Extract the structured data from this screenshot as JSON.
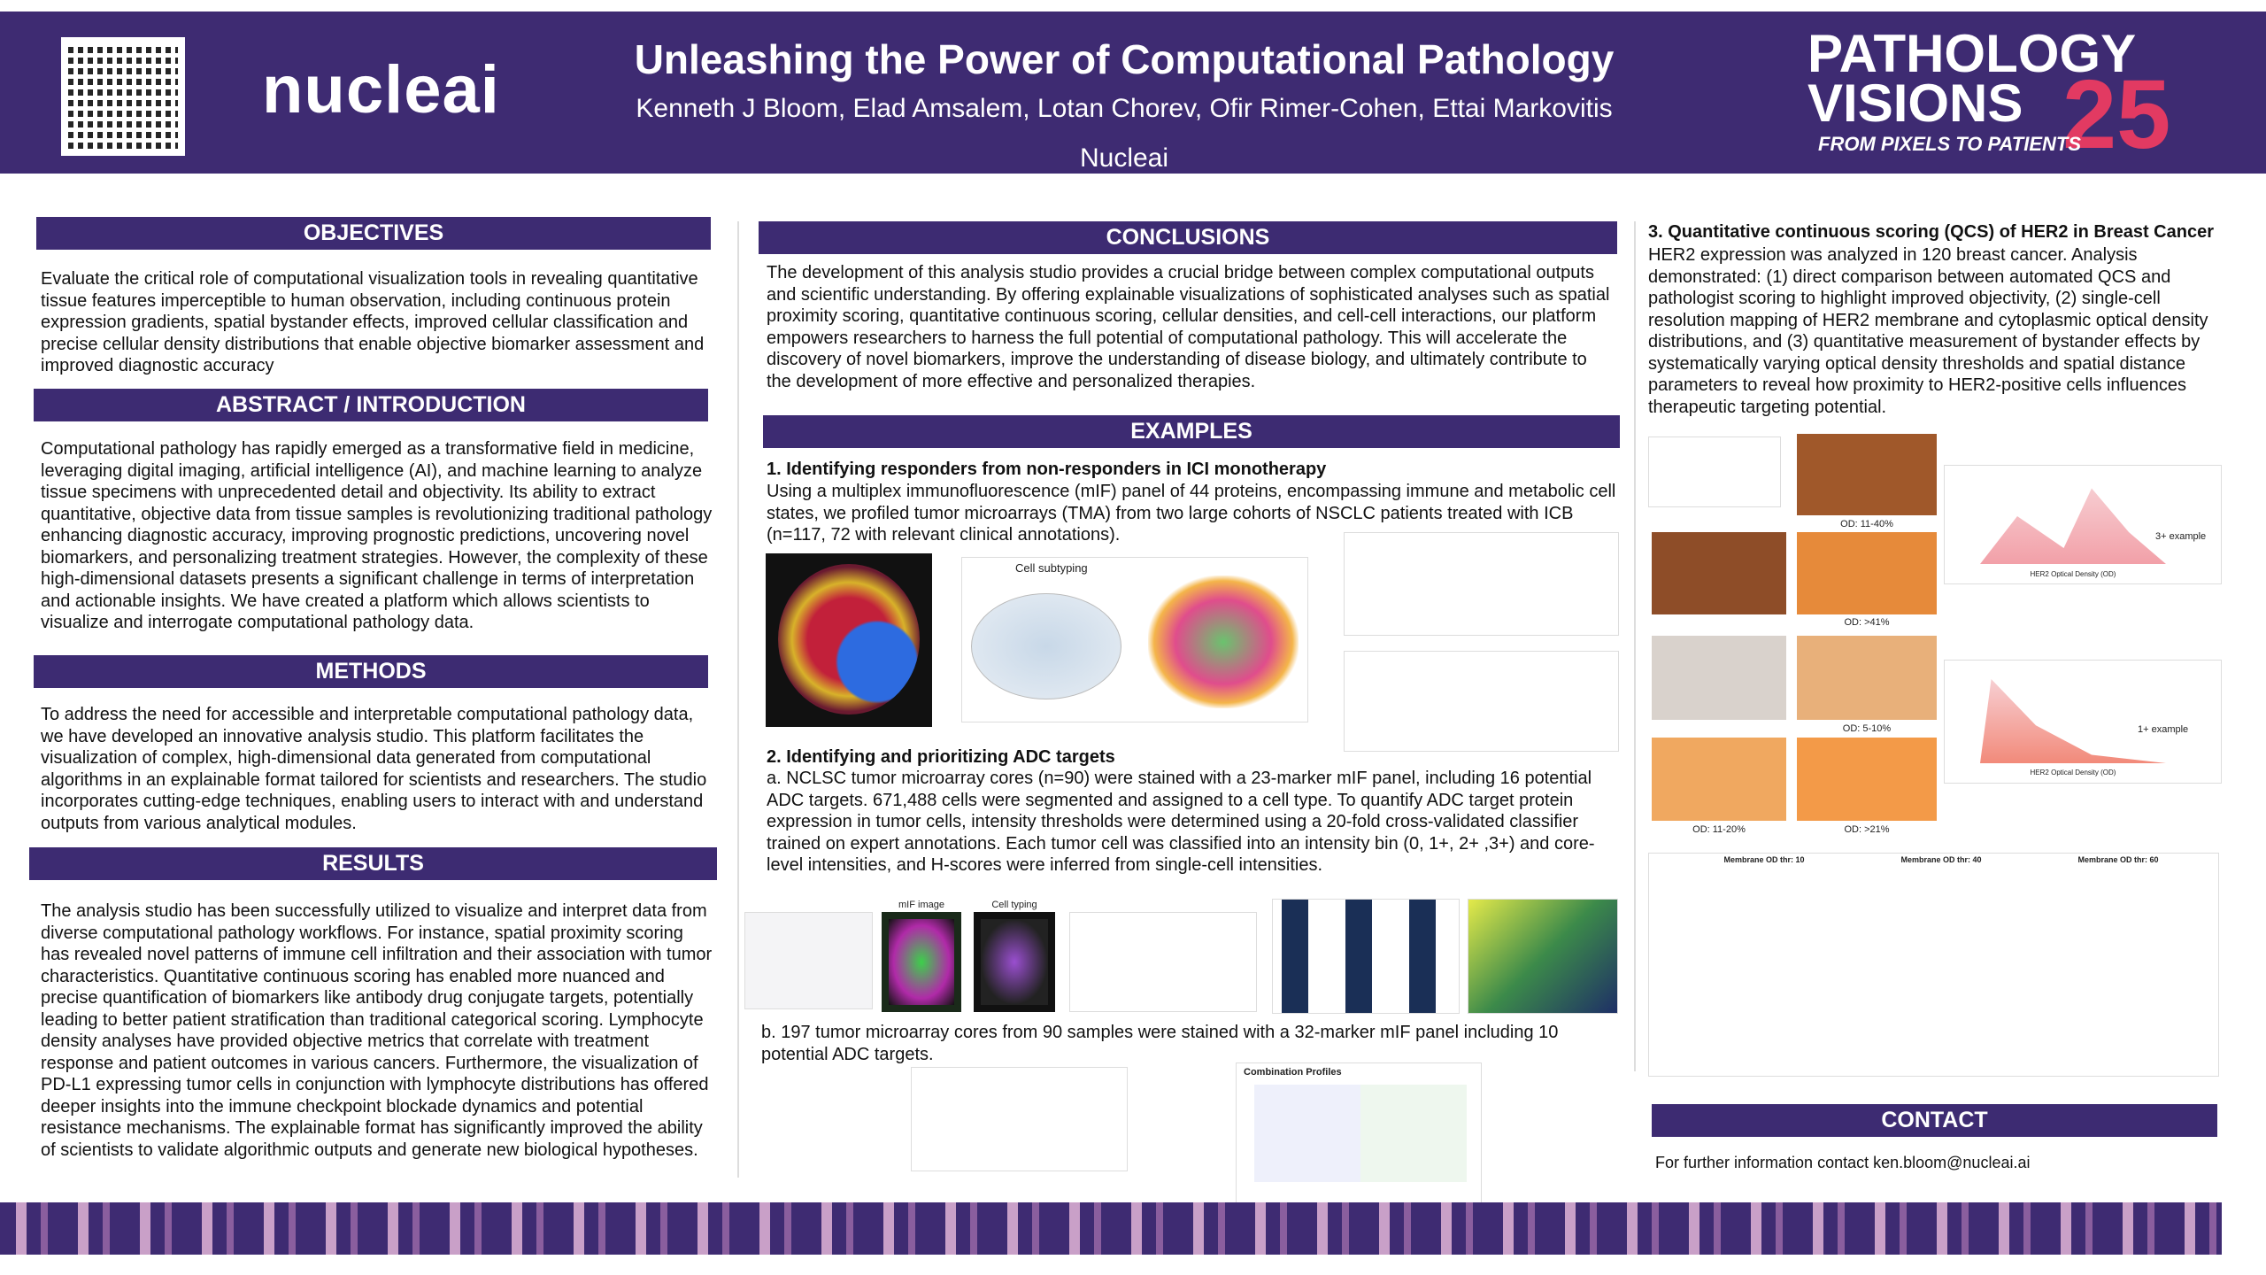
{
  "header": {
    "title": "Unleashing the Power of Computational Pathology",
    "authors": "Kenneth J Bloom, Elad Amsalem, Lotan Chorev, Ofir Rimer-Cohen, Ettai Markovitis",
    "affiliation": "Nucleai",
    "logo": "nucleai",
    "event": {
      "line1": "PATHOLOGY",
      "line2": "VISIONS",
      "year": "25",
      "tagline": "FROM PIXELS TO PATIENTS"
    }
  },
  "sections": {
    "objectives": {
      "heading": "OBJECTIVES",
      "text": "Evaluate the critical role of computational visualization tools in revealing quantitative tissue features imperceptible to human observation, including continuous protein expression gradients, spatial bystander effects, improved cellular classification and precise cellular density distributions that enable objective biomarker assessment and improved diagnostic accuracy"
    },
    "abstract": {
      "heading": "ABSTRACT / INTRODUCTION",
      "text": "Computational pathology has rapidly emerged as a transformative field in medicine, leveraging digital imaging, artificial intelligence (AI), and machine learning to analyze tissue specimens with unprecedented detail and objectivity. Its ability to extract quantitative, objective data from tissue samples is revolutionizing traditional pathology enhancing diagnostic accuracy, improving prognostic predictions, uncovering novel biomarkers, and personalizing treatment strategies. However, the complexity of these high-dimensional datasets presents a significant challenge in terms of interpretation and actionable insights.  We have created a platform which allows scientists to visualize and interrogate computational pathology data."
    },
    "methods": {
      "heading": "METHODS",
      "text": "To address the need for accessible and interpretable computational pathology data, we have developed an innovative analysis studio. This platform facilitates the visualization of complex, high-dimensional data generated from computational algorithms in an explainable format tailored for scientists and researchers. The studio incorporates cutting-edge techniques, enabling users to interact with and understand outputs from various analytical modules."
    },
    "results": {
      "heading": "RESULTS",
      "text": "The analysis studio has been successfully utilized to visualize and interpret data from diverse computational pathology workflows. For instance, spatial proximity scoring has revealed novel patterns of immune cell infiltration and their association with tumor characteristics. Quantitative continuous scoring has enabled more nuanced and precise quantification of biomarkers like antibody drug conjugate targets, potentially leading to better patient stratification than traditional categorical scoring. Lymphocyte density analyses have provided objective metrics that correlate with treatment response and patient outcomes in various cancers. Furthermore, the visualization of PD-L1 expressing tumor cells in conjunction with lymphocyte distributions has offered deeper insights into the immune checkpoint blockade dynamics and potential resistance mechanisms. The explainable format has significantly improved the ability of scientists to validate algorithmic outputs and generate new biological hypotheses."
    },
    "conclusions": {
      "heading": "CONCLUSIONS",
      "text": "The development of this analysis studio provides a crucial bridge between complex computational outputs and scientific understanding. By offering explainable visualizations of sophisticated analyses such as spatial proximity scoring, quantitative continuous scoring, cellular densities, and cell-cell interactions, our platform empowers researchers to harness the full potential of computational pathology. This will accelerate the discovery of novel biomarkers, improve the understanding of disease biology, and ultimately contribute to the development of more effective and personalized therapies."
    },
    "examples": {
      "heading": "EXAMPLES",
      "items": [
        {
          "title": "1.  Identifying responders from non-responders in ICI monotherapy",
          "text": "Using a multiplex immunofluorescence (mIF) panel of 44 proteins, encompassing immune and metabolic cell states, we profiled tumor microarrays (TMA) from two large cohorts of NSCLC patients treated with ICB (n=117, 72 with relevant clinical annotations)."
        },
        {
          "title": "2.  Identifying and prioritizing ADC targets",
          "text": "a.  NCLSC tumor microarray cores (n=90) were stained with a 23-marker mIF panel, including 16 potential ADC targets. 671,488 cells were segmented and assigned to a cell type. To quantify ADC target protein expression in tumor cells, intensity thresholds were determined using a 20-fold cross-validated classifier trained on expert annotations. Each tumor cell was classified into an intensity bin (0, 1+, 2+ ,3+) and core-level intensities, and H-scores were inferred from single-cell intensities.",
          "text_b": "b.  197 tumor microarray cores from 90 samples were stained with a 32-marker mIF panel including 10 potential ADC targets."
        }
      ]
    },
    "her2": {
      "title": "3.  Quantitative continuous scoring (QCS) of HER2 in Breast Cancer",
      "text": "HER2 expression was analyzed in 120 breast cancer.  Analysis demonstrated: (1) direct comparison between automated QCS and pathologist scoring to highlight improved objectivity, (2) single-cell resolution mapping of HER2 membrane and cytoplasmic optical density distributions, and (3) quantitative measurement of bystander effects by systematically varying optical density thresholds and spatial distance parameters to reveal how proximity to HER2-positive cells influences therapeutic targeting potential."
    },
    "contact": {
      "heading": "CONTACT",
      "text": "For further information contact ken.bloom@nucleai.ai"
    }
  },
  "figures": {
    "cell_subtyping": "Cell subtyping",
    "mif_image": "mIF image",
    "cell_typing": "Cell typing",
    "combination": "Combination Profiles",
    "od_labels": [
      "OD: 11-40%",
      "OD: >41%",
      "OD: 5-10%",
      "OD: 11-20%",
      "OD: >21%"
    ],
    "hist_labels": [
      "3+ example",
      "1+ example"
    ],
    "hist_xlabel": "HER2 Optical Density (OD)",
    "scatter_titles": [
      "Membrane OD thr: 10",
      "Membrane OD thr: 40",
      "Membrane OD thr: 60"
    ]
  }
}
